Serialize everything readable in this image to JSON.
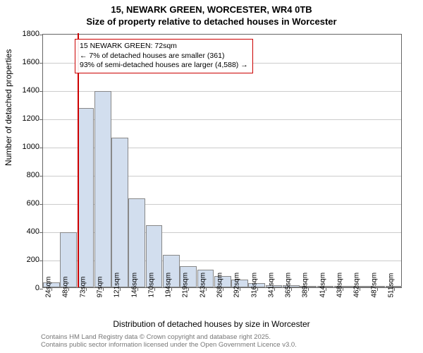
{
  "title": {
    "line1": "15, NEWARK GREEN, WORCESTER, WR4 0TB",
    "line2": "Size of property relative to detached houses in Worcester"
  },
  "chart": {
    "type": "histogram",
    "background_color": "#ffffff",
    "grid_color": "#cccccc",
    "border_color": "#666666",
    "bar_fill": "#d2deee",
    "bar_stroke": "#888888",
    "marker_color": "#cc0000",
    "ylim": [
      0,
      1800
    ],
    "ytick_step": 200,
    "yticks": [
      0,
      200,
      400,
      600,
      800,
      1000,
      1200,
      1400,
      1600,
      1800
    ],
    "xlabel": "Distribution of detached houses by size in Worcester",
    "ylabel": "Number of detached properties",
    "x_categories": [
      "24sqm",
      "48sqm",
      "73sqm",
      "97sqm",
      "121sqm",
      "146sqm",
      "170sqm",
      "194sqm",
      "219sqm",
      "243sqm",
      "268sqm",
      "292sqm",
      "316sqm",
      "341sqm",
      "365sqm",
      "389sqm",
      "414sqm",
      "438sqm",
      "462sqm",
      "487sqm",
      "511sqm"
    ],
    "values": [
      35,
      390,
      1270,
      1390,
      1060,
      630,
      440,
      230,
      150,
      125,
      80,
      55,
      30,
      15,
      15,
      10,
      5,
      0,
      0,
      5,
      5
    ],
    "marker_x_index": 2,
    "marker_x_offset": 0.0,
    "annotation": {
      "line1": "15 NEWARK GREEN: 72sqm",
      "line2": "← 7% of detached houses are smaller (361)",
      "line3": "93% of semi-detached houses are larger (4,588) →"
    },
    "fontsize_title": 13,
    "fontsize_axis_label": 12,
    "fontsize_tick": 11,
    "fontsize_annotation": 10.5
  },
  "attribution": {
    "line1": "Contains HM Land Registry data © Crown copyright and database right 2025.",
    "line2": "Contains public sector information licensed under the Open Government Licence v3.0.",
    "color": "#777777"
  }
}
